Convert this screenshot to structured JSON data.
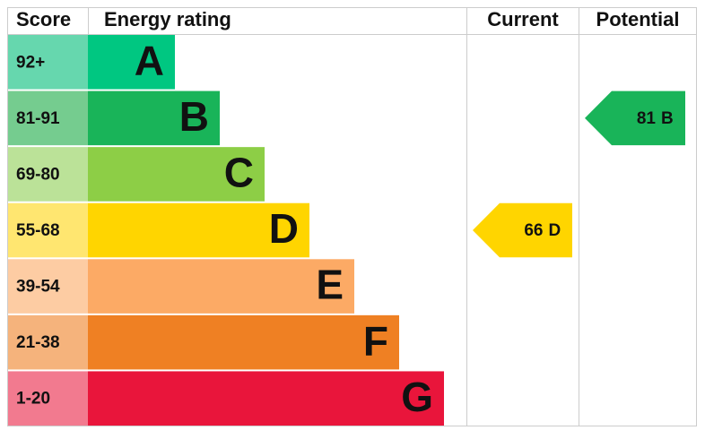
{
  "headers": {
    "score": "Score",
    "rating": "Energy rating",
    "current": "Current",
    "potential": "Potential"
  },
  "bands": [
    {
      "score": "92+",
      "letter": "A",
      "color": "#00c781",
      "score_color": "#66d7ae"
    },
    {
      "score": "81-91",
      "letter": "B",
      "color": "#19b459",
      "score_color": "#75cc8f"
    },
    {
      "score": "69-80",
      "letter": "C",
      "color": "#8dce46",
      "score_color": "#bbe298"
    },
    {
      "score": "55-68",
      "letter": "D",
      "color": "#ffd500",
      "score_color": "#ffe670"
    },
    {
      "score": "39-54",
      "letter": "E",
      "color": "#fcaa65",
      "score_color": "#fdcca3"
    },
    {
      "score": "21-38",
      "letter": "F",
      "color": "#ef8023",
      "score_color": "#f5b37c"
    },
    {
      "score": "1-20",
      "letter": "G",
      "color": "#e9153b",
      "score_color": "#f27a8f"
    }
  ],
  "current": {
    "value": 66,
    "letter": "D"
  },
  "potential": {
    "value": 81,
    "letter": "B"
  }
}
